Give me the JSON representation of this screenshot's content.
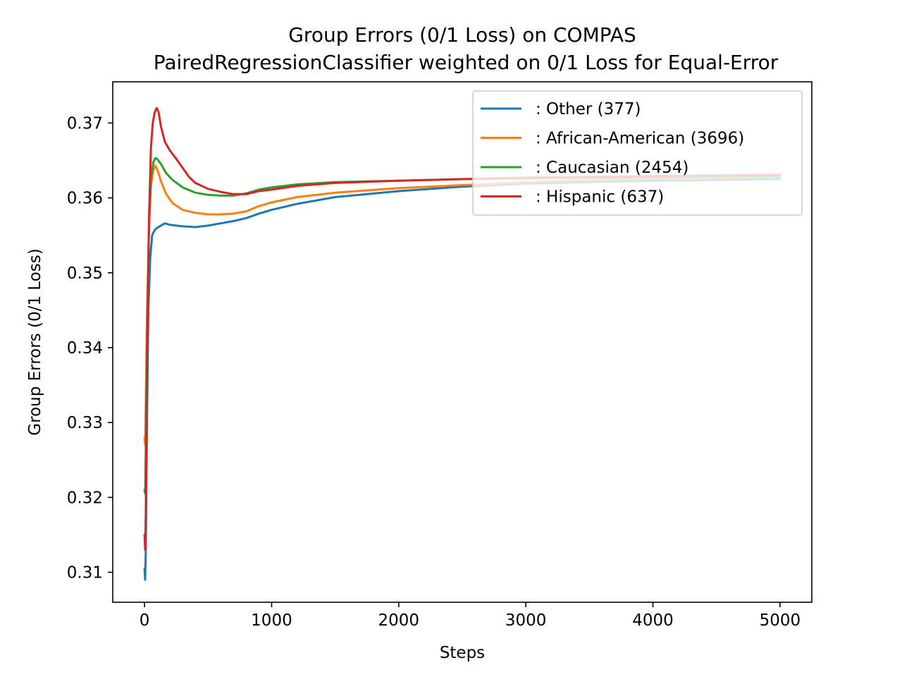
{
  "chart_data": {
    "type": "line",
    "title": "Group Errors (0/1 Loss) on COMPAS",
    "subtitle": "PairedRegressionClassifier weighted on 0/1 Loss for Equal-Error",
    "xlabel": "Steps",
    "ylabel": "Group Errors (0/1 Loss)",
    "xlim": [
      -250,
      5250
    ],
    "ylim": [
      0.306,
      0.3755
    ],
    "x_ticks": [
      0,
      1000,
      2000,
      3000,
      4000,
      5000
    ],
    "x_tick_labels": [
      "0",
      "1000",
      "2000",
      "3000",
      "4000",
      "5000"
    ],
    "y_ticks": [
      0.31,
      0.32,
      0.33,
      0.34,
      0.35,
      0.36,
      0.37
    ],
    "y_tick_labels": [
      "0.31",
      "0.32",
      "0.33",
      "0.34",
      "0.35",
      "0.36",
      "0.37"
    ],
    "grid": false,
    "legend_position": "upper-right",
    "series": [
      {
        "name": ": Other  (377)",
        "color": "#1f77b4",
        "points": [
          [
            0,
            0.3105
          ],
          [
            5,
            0.309
          ],
          [
            10,
            0.313
          ],
          [
            20,
            0.331
          ],
          [
            30,
            0.345
          ],
          [
            45,
            0.352
          ],
          [
            60,
            0.355
          ],
          [
            80,
            0.3557
          ],
          [
            100,
            0.356
          ],
          [
            130,
            0.3563
          ],
          [
            160,
            0.3566
          ],
          [
            200,
            0.3564
          ],
          [
            250,
            0.3563
          ],
          [
            300,
            0.3562
          ],
          [
            400,
            0.3561
          ],
          [
            500,
            0.3563
          ],
          [
            600,
            0.3566
          ],
          [
            700,
            0.3569
          ],
          [
            800,
            0.3573
          ],
          [
            900,
            0.3579
          ],
          [
            1000,
            0.3584
          ],
          [
            1200,
            0.3592
          ],
          [
            1500,
            0.3601
          ],
          [
            2000,
            0.3609
          ],
          [
            2500,
            0.3615
          ],
          [
            3000,
            0.3619
          ],
          [
            3500,
            0.3621
          ],
          [
            4000,
            0.3623
          ],
          [
            4500,
            0.3624
          ],
          [
            5000,
            0.3625
          ]
        ]
      },
      {
        "name": ": African-American  (3696)",
        "color": "#ff7f0e",
        "points": [
          [
            0,
            0.328
          ],
          [
            5,
            0.327
          ],
          [
            10,
            0.333
          ],
          [
            20,
            0.345
          ],
          [
            35,
            0.356
          ],
          [
            50,
            0.3615
          ],
          [
            70,
            0.3638
          ],
          [
            85,
            0.3643
          ],
          [
            100,
            0.3638
          ],
          [
            130,
            0.3622
          ],
          [
            170,
            0.3605
          ],
          [
            220,
            0.3593
          ],
          [
            300,
            0.3584
          ],
          [
            400,
            0.358
          ],
          [
            500,
            0.3578
          ],
          [
            600,
            0.3578
          ],
          [
            700,
            0.3579
          ],
          [
            800,
            0.3582
          ],
          [
            900,
            0.3589
          ],
          [
            1000,
            0.3594
          ],
          [
            1200,
            0.3601
          ],
          [
            1500,
            0.3607
          ],
          [
            2000,
            0.3613
          ],
          [
            2500,
            0.3617
          ],
          [
            3000,
            0.3621
          ],
          [
            3500,
            0.3624
          ],
          [
            4000,
            0.3626
          ],
          [
            4500,
            0.3627
          ],
          [
            5000,
            0.3628
          ]
        ]
      },
      {
        "name": ": Caucasian  (2454)",
        "color": "#2ca02c",
        "points": [
          [
            0,
            0.321
          ],
          [
            5,
            0.3205
          ],
          [
            10,
            0.327
          ],
          [
            20,
            0.342
          ],
          [
            35,
            0.356
          ],
          [
            50,
            0.3625
          ],
          [
            70,
            0.3648
          ],
          [
            85,
            0.3653
          ],
          [
            100,
            0.3652
          ],
          [
            130,
            0.3645
          ],
          [
            170,
            0.3633
          ],
          [
            220,
            0.3624
          ],
          [
            300,
            0.3614
          ],
          [
            400,
            0.3607
          ],
          [
            500,
            0.3604
          ],
          [
            600,
            0.3603
          ],
          [
            700,
            0.3603
          ],
          [
            800,
            0.3606
          ],
          [
            900,
            0.3611
          ],
          [
            1000,
            0.3614
          ],
          [
            1200,
            0.3618
          ],
          [
            1500,
            0.3621
          ],
          [
            2000,
            0.3623
          ],
          [
            2500,
            0.3625
          ],
          [
            3000,
            0.3626
          ],
          [
            3500,
            0.3627
          ],
          [
            4000,
            0.3628
          ],
          [
            4500,
            0.3628
          ],
          [
            5000,
            0.3629
          ]
        ]
      },
      {
        "name": ": Hispanic  (637)",
        "color": "#d62728",
        "points": [
          [
            0,
            0.315
          ],
          [
            5,
            0.313
          ],
          [
            10,
            0.318
          ],
          [
            20,
            0.338
          ],
          [
            35,
            0.357
          ],
          [
            50,
            0.3665
          ],
          [
            65,
            0.37
          ],
          [
            80,
            0.3714
          ],
          [
            95,
            0.372
          ],
          [
            110,
            0.3715
          ],
          [
            130,
            0.3695
          ],
          [
            160,
            0.3675
          ],
          [
            200,
            0.3663
          ],
          [
            250,
            0.3652
          ],
          [
            300,
            0.364
          ],
          [
            350,
            0.3628
          ],
          [
            400,
            0.362
          ],
          [
            500,
            0.3612
          ],
          [
            600,
            0.3608
          ],
          [
            700,
            0.3605
          ],
          [
            800,
            0.3605
          ],
          [
            900,
            0.3609
          ],
          [
            1000,
            0.3611
          ],
          [
            1200,
            0.3616
          ],
          [
            1500,
            0.362
          ],
          [
            2000,
            0.3623
          ],
          [
            2500,
            0.3625
          ],
          [
            3000,
            0.3627
          ],
          [
            3500,
            0.3628
          ],
          [
            4000,
            0.3629
          ],
          [
            4500,
            0.363
          ],
          [
            5000,
            0.3631
          ]
        ]
      }
    ]
  }
}
